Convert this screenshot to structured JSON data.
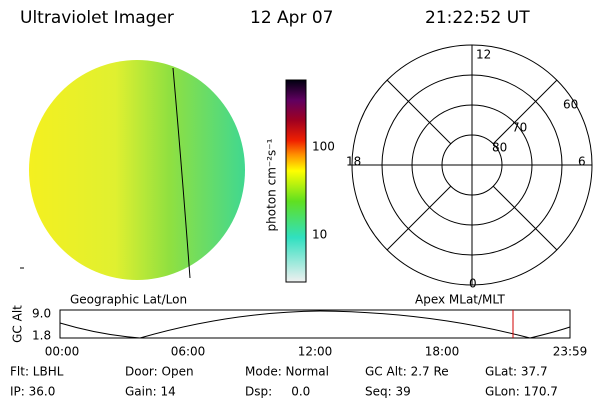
{
  "header": {
    "title": "Ultraviolet Imager",
    "date": "12 Apr 07",
    "time": "21:22:52 UT"
  },
  "colorbar": {
    "label": "photon cm⁻²s⁻¹",
    "ticks": [
      "100",
      "10"
    ]
  },
  "polar": {
    "labels": {
      "top": "12",
      "bottom": "0",
      "left": "18",
      "right": "6"
    },
    "rings": [
      "60",
      "70",
      "80"
    ]
  },
  "panel_labels": {
    "left": "Geographic Lat/Lon",
    "right": "Apex MLat/MLT"
  },
  "altitude_plot": {
    "label": "GC Alt",
    "ymax": "9.0",
    "ymin": "1.8",
    "times": [
      "00:00",
      "06:00",
      "12:00",
      "18:00",
      "23:59"
    ]
  },
  "info": {
    "rows": [
      [
        "Flt: LBHL",
        "Door: Open",
        "Mode: Normal",
        "GC Alt: 2.7 Re",
        "GLat: 37.7"
      ],
      [
        "IP: 36.0",
        "Gain: 14",
        "Dsp:     0.0",
        "Seq: 39",
        "GLon: 170.7"
      ]
    ]
  }
}
